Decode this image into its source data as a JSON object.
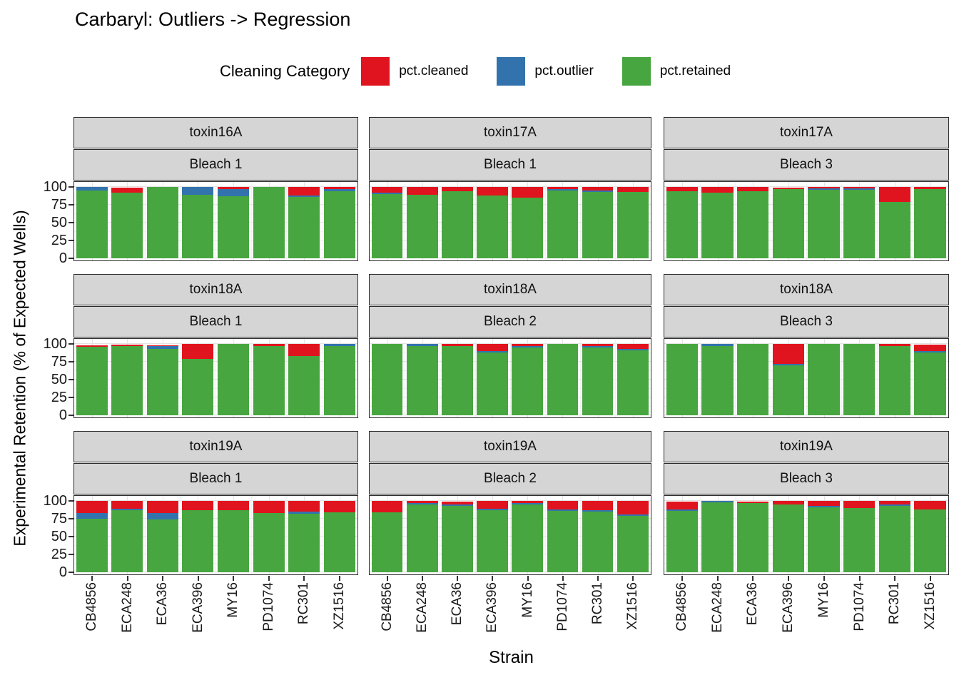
{
  "title": "Carbaryl: Outliers -> Regression",
  "legend": {
    "title": "Cleaning Category",
    "items": [
      {
        "label": "pct.cleaned",
        "color": "#E0141E"
      },
      {
        "label": "pct.outlier",
        "color": "#3273AE"
      },
      {
        "label": "pct.retained",
        "color": "#47A63F"
      }
    ]
  },
  "chart_data": {
    "type": "bar",
    "stacked": true,
    "title": "Carbaryl: Outliers -> Regression",
    "xlabel": "Strain",
    "ylabel": "Experimental Retention (% of Expected Wells)",
    "ylim": [
      0,
      100
    ],
    "yticks": [
      0,
      25,
      50,
      75,
      100
    ],
    "grid": true,
    "legend_position": "top",
    "categories": [
      "CB4856",
      "ECA248",
      "ECA36",
      "ECA396",
      "MY16",
      "PD1074",
      "RC301",
      "XZ1516"
    ],
    "stack_order_bottom_to_top": [
      "pct.retained",
      "pct.outlier",
      "pct.cleaned"
    ],
    "facets": [
      {
        "row": 1,
        "col": 1,
        "toxin": "toxin16A",
        "bleach": "Bleach 1",
        "series": {
          "pct.retained": [
            95,
            92,
            100,
            89,
            87,
            100,
            86,
            94
          ],
          "pct.outlier": [
            5,
            0,
            0,
            11,
            10,
            0,
            2,
            3
          ],
          "pct.cleaned": [
            0,
            7,
            0,
            0,
            3,
            0,
            12,
            3
          ]
        }
      },
      {
        "row": 1,
        "col": 2,
        "toxin": "toxin17A",
        "bleach": "Bleach 1",
        "series": {
          "pct.retained": [
            90,
            89,
            94,
            88,
            85,
            95,
            93,
            93
          ],
          "pct.outlier": [
            2,
            0,
            0,
            0,
            0,
            2,
            2,
            0
          ],
          "pct.cleaned": [
            8,
            11,
            6,
            12,
            15,
            3,
            5,
            7
          ]
        }
      },
      {
        "row": 1,
        "col": 3,
        "toxin": "toxin17A",
        "bleach": "Bleach 3",
        "series": {
          "pct.retained": [
            94,
            92,
            94,
            97,
            96,
            96,
            79,
            97
          ],
          "pct.outlier": [
            0,
            0,
            0,
            0,
            2,
            2,
            0,
            0
          ],
          "pct.cleaned": [
            6,
            8,
            6,
            2,
            2,
            2,
            21,
            3
          ]
        }
      },
      {
        "row": 2,
        "col": 1,
        "toxin": "toxin18A",
        "bleach": "Bleach 1",
        "series": {
          "pct.retained": [
            96,
            97,
            93,
            79,
            100,
            97,
            83,
            97
          ],
          "pct.outlier": [
            0,
            0,
            4,
            0,
            0,
            0,
            0,
            3
          ],
          "pct.cleaned": [
            2,
            2,
            1,
            21,
            0,
            3,
            17,
            0
          ]
        }
      },
      {
        "row": 2,
        "col": 2,
        "toxin": "toxin18A",
        "bleach": "Bleach 2",
        "series": {
          "pct.retained": [
            100,
            97,
            97,
            88,
            95,
            100,
            95,
            91
          ],
          "pct.outlier": [
            0,
            3,
            0,
            2,
            2,
            0,
            2,
            2
          ],
          "pct.cleaned": [
            0,
            0,
            3,
            10,
            3,
            0,
            3,
            7
          ]
        }
      },
      {
        "row": 2,
        "col": 3,
        "toxin": "toxin18A",
        "bleach": "Bleach 3",
        "series": {
          "pct.retained": [
            100,
            97,
            100,
            70,
            100,
            100,
            97,
            88
          ],
          "pct.outlier": [
            0,
            3,
            0,
            2,
            0,
            0,
            0,
            2
          ],
          "pct.cleaned": [
            0,
            0,
            0,
            28,
            0,
            0,
            3,
            9
          ]
        }
      },
      {
        "row": 3,
        "col": 1,
        "toxin": "toxin19A",
        "bleach": "Bleach 1",
        "series": {
          "pct.retained": [
            75,
            87,
            74,
            87,
            87,
            83,
            82,
            84
          ],
          "pct.outlier": [
            8,
            2,
            9,
            0,
            0,
            0,
            3,
            0
          ],
          "pct.cleaned": [
            17,
            11,
            17,
            13,
            13,
            17,
            15,
            16
          ]
        }
      },
      {
        "row": 3,
        "col": 2,
        "toxin": "toxin19A",
        "bleach": "Bleach 2",
        "series": {
          "pct.retained": [
            84,
            95,
            93,
            87,
            95,
            86,
            85,
            79
          ],
          "pct.outlier": [
            0,
            2,
            2,
            2,
            2,
            2,
            2,
            2
          ],
          "pct.cleaned": [
            16,
            3,
            4,
            11,
            3,
            12,
            13,
            19
          ]
        }
      },
      {
        "row": 3,
        "col": 3,
        "toxin": "toxin19A",
        "bleach": "Bleach 3",
        "series": {
          "pct.retained": [
            86,
            98,
            97,
            95,
            91,
            90,
            93,
            88
          ],
          "pct.outlier": [
            2,
            2,
            0,
            0,
            2,
            0,
            2,
            0
          ],
          "pct.cleaned": [
            11,
            0,
            2,
            5,
            7,
            10,
            5,
            12
          ]
        }
      }
    ]
  }
}
